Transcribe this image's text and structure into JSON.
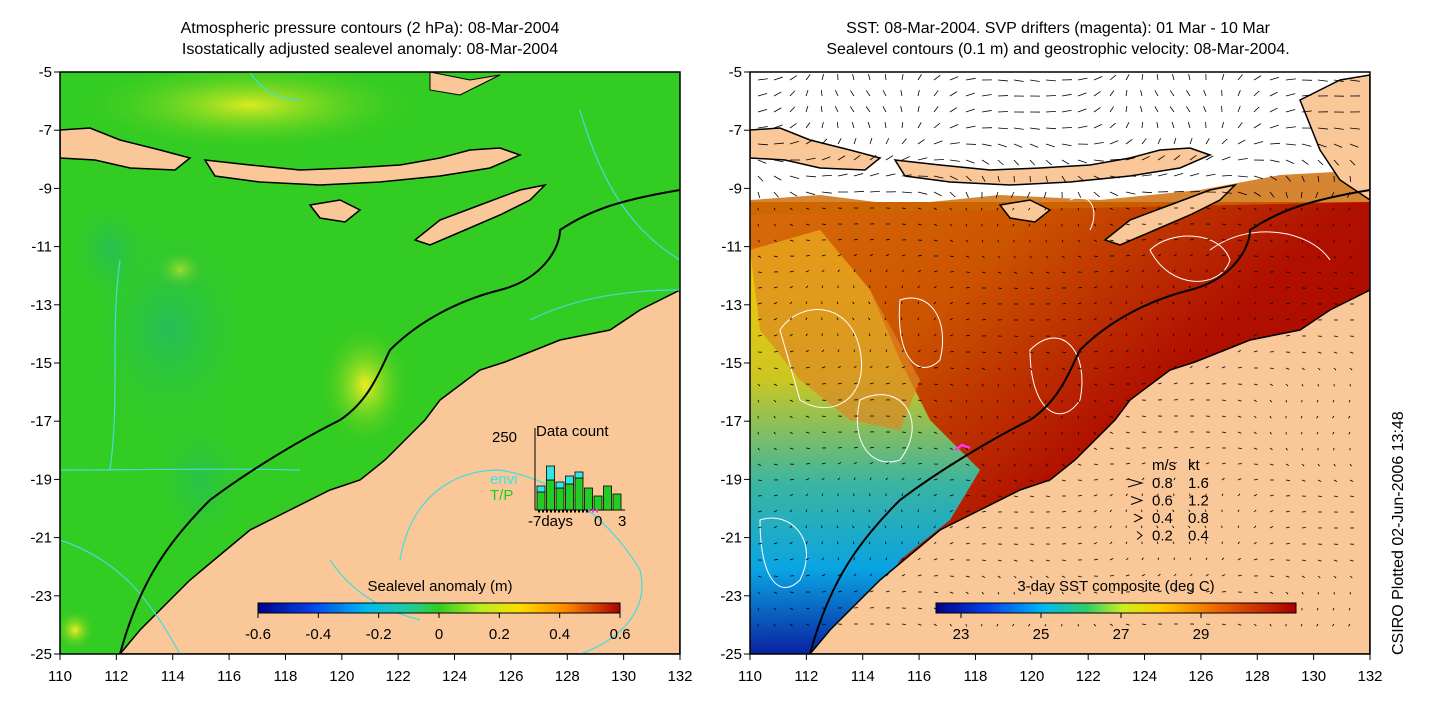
{
  "left_panel": {
    "title_line1": "Atmospheric pressure contours (2 hPa): 08-Mar-2004",
    "title_line2": "Isostatically adjusted sealevel anomaly: 08-Mar-2004",
    "colorbar_title": "Sealevel anomaly (m)",
    "colorbar_ticks": [
      "-0.6",
      "-0.4",
      "-0.2",
      "0",
      "0.2",
      "0.4",
      "0.6"
    ],
    "inset": {
      "title": "Data count",
      "y_max_label": "250",
      "legend_envi": "envi",
      "legend_tp": "T/P",
      "x_labels": [
        "-7days",
        "0",
        "3"
      ],
      "envi_color": "#33e6e6",
      "tp_color": "#22cc22"
    }
  },
  "right_panel": {
    "title_line1": "SST: 08-Mar-2004. SVP drifters (magenta): 01 Mar - 10 Mar",
    "title_line2": "Sealevel contours (0.1 m) and geostrophic velocity: 08-Mar-2004.",
    "colorbar_title": "3-day SST composite (deg C)",
    "colorbar_ticks": [
      "23",
      "25",
      "27",
      "29"
    ],
    "velocity_legend": {
      "header_ms": "m/s",
      "header_kt": "kt",
      "rows": [
        {
          "ms": "0.8",
          "kt": "1.6"
        },
        {
          "ms": "0.6",
          "kt": "1.2"
        },
        {
          "ms": "0.4",
          "kt": "0.8"
        },
        {
          "ms": "0.2",
          "kt": "0.4"
        }
      ]
    }
  },
  "axes": {
    "y_ticks": [
      "-5",
      "-7",
      "-9",
      "-11",
      "-13",
      "-15",
      "-17",
      "-19",
      "-21",
      "-23",
      "-25"
    ],
    "x_ticks": [
      "110",
      "112",
      "114",
      "116",
      "118",
      "120",
      "122",
      "124",
      "126",
      "128",
      "130",
      "132"
    ]
  },
  "side_label": "CSIRO Plotted 02-Jun-2006 13:48",
  "colors": {
    "land": "#fac898",
    "ocean_green": "#33cc22",
    "sst_warm": "#b00f00",
    "sst_cold": "#1133cc",
    "contour_cyan": "#44dddd",
    "drifter_magenta": "#ff33ff"
  }
}
